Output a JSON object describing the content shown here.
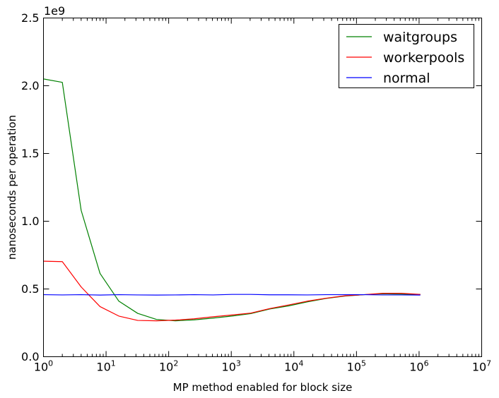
{
  "chart_data": {
    "type": "line",
    "xlabel": "MP method enabled for block size",
    "ylabel": "nanoseconds per operation",
    "x_scale": "log",
    "xlim": [
      1,
      10000000
    ],
    "ylim": [
      0,
      2500000000
    ],
    "y_offset_label": "1e9",
    "x_ticks": [
      {
        "value": 1,
        "base": "10",
        "exp": "0"
      },
      {
        "value": 10,
        "base": "10",
        "exp": "1"
      },
      {
        "value": 100,
        "base": "10",
        "exp": "2"
      },
      {
        "value": 1000,
        "base": "10",
        "exp": "3"
      },
      {
        "value": 10000,
        "base": "10",
        "exp": "4"
      },
      {
        "value": 100000,
        "base": "10",
        "exp": "5"
      },
      {
        "value": 1000000,
        "base": "10",
        "exp": "6"
      },
      {
        "value": 10000000,
        "base": "10",
        "exp": "7"
      }
    ],
    "y_ticks": [
      {
        "value": 0,
        "label": "0.0"
      },
      {
        "value": 500000000,
        "label": "0.5"
      },
      {
        "value": 1000000000,
        "label": "1.0"
      },
      {
        "value": 1500000000,
        "label": "1.5"
      },
      {
        "value": 2000000000,
        "label": "2.0"
      },
      {
        "value": 2500000000,
        "label": "2.5"
      }
    ],
    "grid": false,
    "legend_position": "top-right",
    "x": [
      1,
      2,
      4,
      8,
      16,
      32,
      64,
      128,
      256,
      512,
      1024,
      2048,
      4096,
      8192,
      16384,
      32768,
      65536,
      131072,
      262144,
      524288,
      1048576
    ],
    "series": [
      {
        "name": "waitgroups",
        "color": "#008000",
        "values": [
          2050000000,
          2025000000,
          1080000000,
          615000000,
          410000000,
          320000000,
          275000000,
          265000000,
          272000000,
          285000000,
          300000000,
          318000000,
          352000000,
          375000000,
          405000000,
          430000000,
          448000000,
          458000000,
          465000000,
          462000000,
          460000000
        ]
      },
      {
        "name": "workerpools",
        "color": "#ff0000",
        "values": [
          705000000,
          702000000,
          515000000,
          370000000,
          300000000,
          268000000,
          265000000,
          270000000,
          280000000,
          295000000,
          308000000,
          322000000,
          355000000,
          382000000,
          410000000,
          432000000,
          450000000,
          458000000,
          468000000,
          468000000,
          460000000
        ]
      },
      {
        "name": "normal",
        "color": "#0000ff",
        "values": [
          458000000,
          456000000,
          458000000,
          455000000,
          458000000,
          456000000,
          455000000,
          456000000,
          458000000,
          456000000,
          460000000,
          460000000,
          457000000,
          457000000,
          456000000,
          458000000,
          458000000,
          458000000,
          456000000,
          456000000,
          455000000
        ]
      }
    ]
  }
}
